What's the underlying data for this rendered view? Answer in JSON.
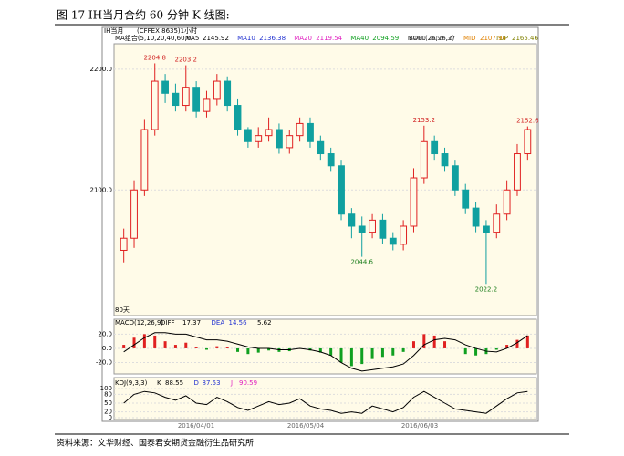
{
  "chart_data": {
    "type": "candlestick",
    "title": "图 17  IH当月合约 60 分钟 K 线图:",
    "source": "资料来源：文华财经、国泰君安期货金融衍生品研究所",
    "symbol": "IH当月",
    "exchange": "(CFFEX 8635)1小时",
    "ma_label": "MA组合(5,10,20,40,60,0)",
    "boll_label": "BOLL(26,26,2)",
    "legend": [
      {
        "name": "MA5",
        "value": 2145.92,
        "color": "#000000"
      },
      {
        "name": "MA10",
        "value": 2136.38,
        "color": "#2030d0"
      },
      {
        "name": "MA20",
        "value": 2119.54,
        "color": "#e020c0"
      },
      {
        "name": "MA40",
        "value": 2094.59,
        "color": "#10a020"
      },
      {
        "name": "MA60",
        "value": 2092.37,
        "color": "#707070"
      },
      {
        "name": "MID",
        "value": 2107.94,
        "color": "#e08000"
      },
      {
        "name": "TOP",
        "value": 2165.46,
        "color": "#808000"
      }
    ],
    "annotations": [
      "2204.8",
      "2203.2",
      "2153.2",
      "2152.6",
      "2044.6",
      "2022.2"
    ],
    "bottom_note": "80天",
    "x_labels": [
      "2016/04/01",
      "2016/05/04",
      "2016/06/03"
    ],
    "ylim": [
      1996,
      2221
    ],
    "yticks": [
      {
        "value": 2200,
        "label": "2200.0"
      },
      {
        "value": 2100,
        "label": "2100.0"
      }
    ],
    "open": [
      2050,
      2060,
      2100,
      2150,
      2190,
      2180,
      2170,
      2185,
      2165,
      2175,
      2190,
      2170,
      2150,
      2140,
      2145,
      2150,
      2135,
      2145,
      2155,
      2140,
      2130,
      2120,
      2080,
      2070,
      2065,
      2075,
      2060,
      2055,
      2070,
      2110,
      2140,
      2130,
      2120,
      2100,
      2085,
      2070,
      2065,
      2080,
      2100,
      2130
    ],
    "high": [
      2068,
      2108,
      2158,
      2204.8,
      2196,
      2188,
      2203.2,
      2190,
      2182,
      2196,
      2194,
      2175,
      2152,
      2152,
      2160,
      2155,
      2150,
      2160,
      2160,
      2145,
      2135,
      2125,
      2085,
      2078,
      2080,
      2080,
      2065,
      2075,
      2118,
      2153.2,
      2145,
      2135,
      2125,
      2105,
      2090,
      2075,
      2088,
      2108,
      2138,
      2152.6
    ],
    "low": [
      2040,
      2052,
      2095,
      2145,
      2172,
      2165,
      2165,
      2160,
      2160,
      2170,
      2165,
      2145,
      2135,
      2135,
      2140,
      2130,
      2130,
      2140,
      2135,
      2125,
      2115,
      2075,
      2060,
      2044.6,
      2060,
      2055,
      2050,
      2050,
      2065,
      2105,
      2125,
      2115,
      2095,
      2080,
      2065,
      2022.2,
      2060,
      2075,
      2095,
      2125
    ],
    "close": [
      2060,
      2100,
      2150,
      2190,
      2180,
      2170,
      2185,
      2165,
      2175,
      2190,
      2170,
      2150,
      2140,
      2145,
      2150,
      2135,
      2145,
      2155,
      2140,
      2130,
      2120,
      2080,
      2070,
      2065,
      2075,
      2060,
      2055,
      2070,
      2110,
      2140,
      2130,
      2120,
      2100,
      2085,
      2070,
      2065,
      2080,
      2100,
      2130,
      2150
    ],
    "macd": {
      "label": "MACD(12,26,9)",
      "legend": [
        {
          "name": "DIFF",
          "value": 17.37,
          "color": "#000000"
        },
        {
          "name": "DEA",
          "value": 14.56,
          "color": "#2030d0"
        },
        {
          "name": "",
          "value": 5.62,
          "color": "#000000"
        }
      ],
      "ylim": [
        -36,
        41
      ],
      "yticks": [
        {
          "value": 20,
          "label": "20.0"
        },
        {
          "value": 0,
          "label": "0.0"
        },
        {
          "value": -20,
          "label": "-20.0"
        }
      ],
      "bars": [
        5,
        15,
        20,
        18,
        10,
        5,
        8,
        2,
        -2,
        3,
        2,
        -5,
        -8,
        -6,
        -3,
        -5,
        -4,
        0,
        -3,
        -6,
        -10,
        -20,
        -25,
        -22,
        -15,
        -12,
        -10,
        -5,
        10,
        20,
        18,
        10,
        0,
        -8,
        -10,
        -8,
        -2,
        5,
        12,
        18
      ],
      "diff": [
        -5,
        5,
        15,
        22,
        22,
        20,
        20,
        16,
        12,
        12,
        10,
        6,
        2,
        0,
        0,
        -2,
        -2,
        0,
        -2,
        -5,
        -10,
        -20,
        -28,
        -32,
        -30,
        -28,
        -26,
        -22,
        -10,
        5,
        12,
        14,
        12,
        5,
        0,
        -4,
        -5,
        0,
        8,
        18
      ]
    },
    "kdj": {
      "label": "KDJ(9,3,3)",
      "legend": [
        {
          "name": "K",
          "value": 88.55,
          "color": "#000000"
        },
        {
          "name": "D",
          "value": 87.53,
          "color": "#2030d0"
        },
        {
          "name": "J",
          "value": 90.59,
          "color": "#e020c0"
        }
      ],
      "ylim": [
        0,
        100
      ],
      "yticks": [
        100,
        80,
        50,
        20,
        0
      ],
      "k": [
        50,
        80,
        90,
        85,
        70,
        60,
        75,
        50,
        45,
        70,
        55,
        35,
        25,
        40,
        55,
        45,
        50,
        65,
        40,
        30,
        25,
        15,
        20,
        15,
        40,
        30,
        20,
        35,
        70,
        90,
        70,
        50,
        30,
        25,
        20,
        15,
        40,
        65,
        85,
        90
      ]
    }
  }
}
